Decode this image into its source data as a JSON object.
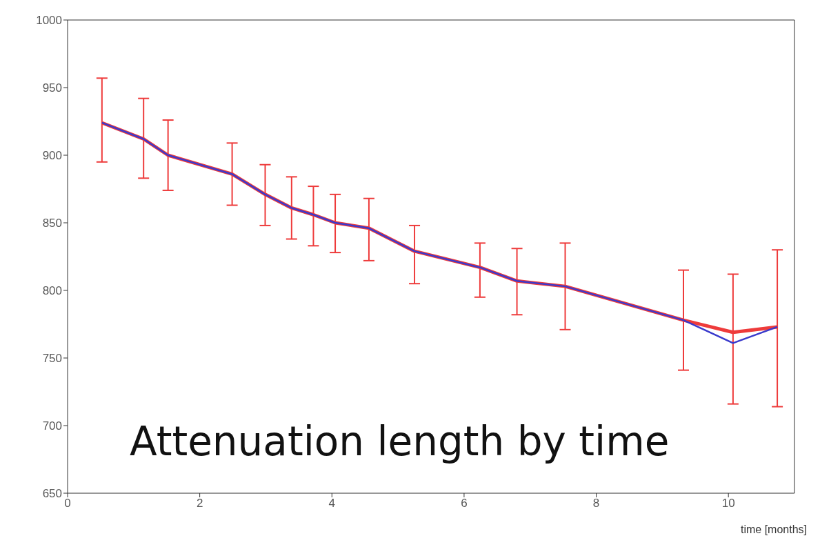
{
  "chart_data": {
    "type": "line",
    "xlabel": "time [months]",
    "annotations": [
      "Attenuation length by time"
    ],
    "x": [
      0.52,
      1.15,
      1.52,
      2.49,
      2.99,
      3.39,
      3.72,
      4.05,
      4.56,
      5.25,
      6.24,
      6.8,
      7.53,
      9.32,
      10.07,
      10.74
    ],
    "series": [
      {
        "color": "#ee3b3b",
        "values": [
          924,
          912,
          900,
          886,
          871,
          861,
          856,
          850,
          846,
          829,
          817,
          807,
          803,
          778,
          769,
          773
        ],
        "errors": [
          [
            895,
            957
          ],
          [
            883,
            942
          ],
          [
            874,
            926
          ],
          [
            863,
            909
          ],
          [
            848,
            893
          ],
          [
            838,
            884
          ],
          [
            833,
            877
          ],
          [
            828,
            871
          ],
          [
            822,
            868
          ],
          [
            805,
            848
          ],
          [
            795,
            835
          ],
          [
            782,
            831
          ],
          [
            771,
            835
          ],
          [
            741,
            815
          ],
          [
            716,
            812
          ],
          [
            714,
            830
          ]
        ]
      },
      {
        "color": "#3a3acc",
        "values": [
          924,
          912,
          900,
          886,
          871,
          861,
          856,
          850,
          846,
          829,
          817,
          807,
          803,
          778,
          761,
          773
        ]
      }
    ],
    "xlim": [
      0,
      11
    ],
    "xticks": [
      0,
      2,
      4,
      6,
      8,
      10
    ],
    "ylim": [
      650,
      1000
    ],
    "yticks": [
      650,
      700,
      750,
      800,
      850,
      900,
      950,
      1000
    ],
    "grid": false,
    "marker": "none",
    "line_style": "solid"
  }
}
